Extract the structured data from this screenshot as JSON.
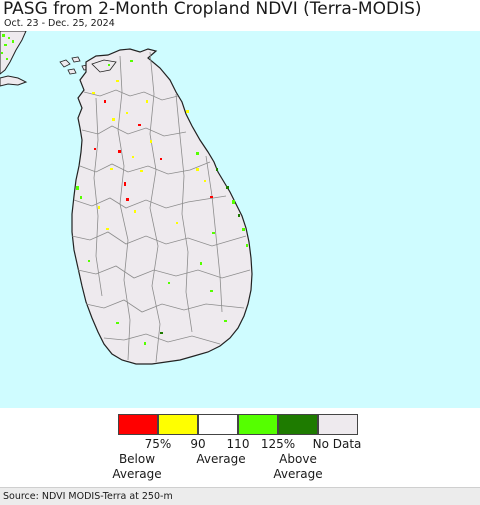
{
  "header": {
    "title": "PASG from 2-Month Cropland NDVI (Terra-MODIS)",
    "date_range": "Oct. 23 - Dec. 25, 2024"
  },
  "map": {
    "region": "Sri Lanka",
    "colors": {
      "ocean": "#cffcff",
      "land_no_data": "#eeeaee",
      "land_normal": "#ffffff",
      "boundary": "#8c8c8c",
      "coast": "#222222"
    }
  },
  "legend": {
    "swatches": [
      {
        "label": "below_75",
        "color": "#ff0000"
      },
      {
        "label": "75_90",
        "color": "#ffff00"
      },
      {
        "label": "90_110",
        "color": "#ffffff"
      },
      {
        "label": "110_125",
        "color": "#55ff00"
      },
      {
        "label": "above_125",
        "color": "#1e7b00"
      },
      {
        "label": "no_data",
        "color": "#eeeaee"
      }
    ],
    "ticks": [
      "75%",
      "90",
      "110",
      "125%"
    ],
    "no_data_label": "No Data",
    "below_label": "Below\nAverage",
    "average_label": "Average",
    "above_label": "Above\nAverage"
  },
  "footer": {
    "source": "Source: NDVI MODIS-Terra at 250-m"
  }
}
